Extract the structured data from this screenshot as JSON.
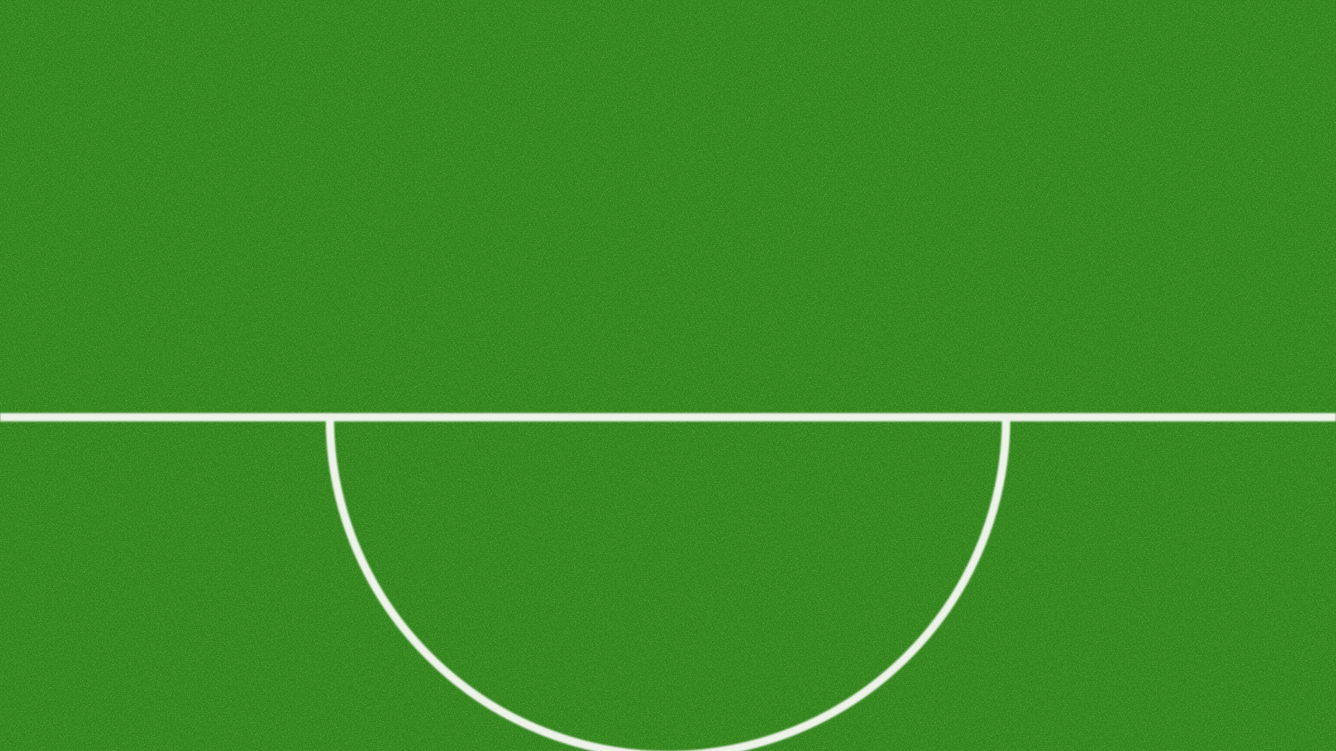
{
  "scene": {
    "subject": "grass-pitch",
    "markings": [
      "halfway-line",
      "center-semicircle"
    ],
    "colors": {
      "grass_dark": "#1f6e12",
      "grass_mid": "#2f8a1c",
      "grass_light": "#4aa52a",
      "grass_highlight": "#7cc43c",
      "line": "#eef3ea"
    }
  }
}
